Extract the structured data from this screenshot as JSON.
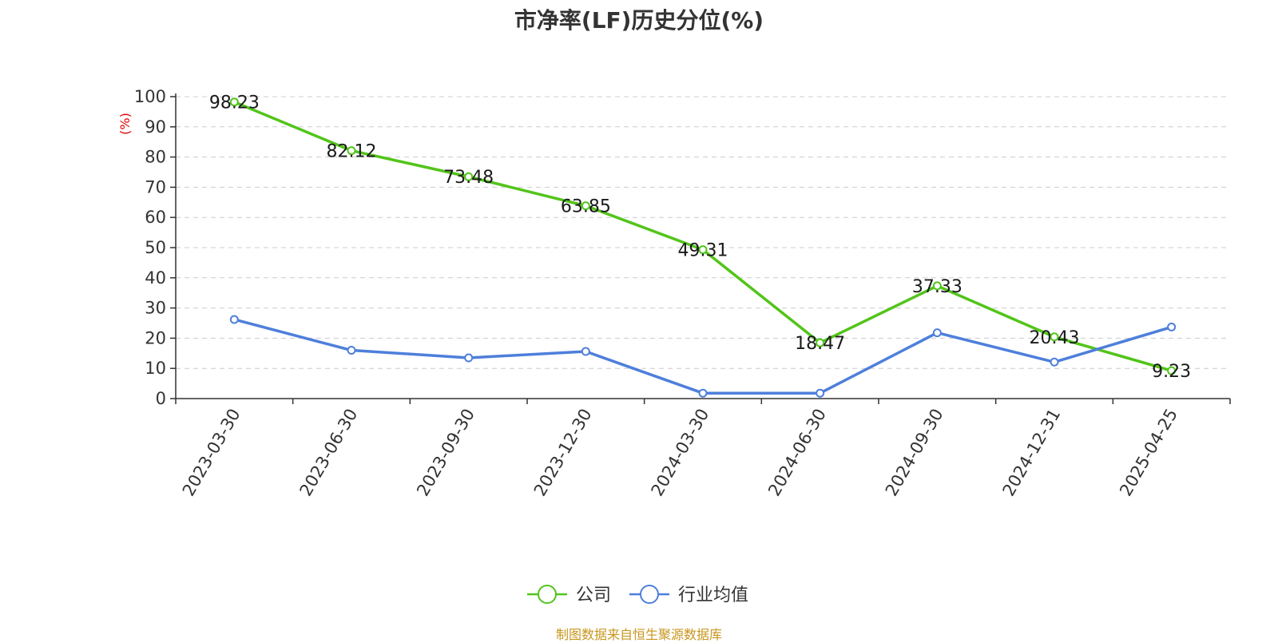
{
  "title": "市净率(LF)历史分位(%)",
  "source_note": "制图数据来自恒生聚源数据库",
  "colors": {
    "company": "#52c41a",
    "industry": "#4e7fdb",
    "axis": "#333333",
    "grid": "#cccccc",
    "unit": "#e00000"
  },
  "chart_data": {
    "type": "line",
    "categories": [
      "2023-03-30",
      "2023-06-30",
      "2023-09-30",
      "2023-12-30",
      "2024-03-30",
      "2024-06-30",
      "2024-09-30",
      "2024-12-31",
      "2025-04-25"
    ],
    "series": [
      {
        "name": "公司",
        "values": [
          98.23,
          82.12,
          73.48,
          63.85,
          49.31,
          18.47,
          37.33,
          20.43,
          9.23
        ],
        "labels": [
          "98.23",
          "82.12",
          "73.48",
          "63.85",
          "49.31",
          "18.47",
          "37.33",
          "20.43",
          "9.23"
        ]
      },
      {
        "name": "行业均值",
        "values": [
          26.2,
          16.0,
          13.5,
          15.6,
          1.8,
          1.8,
          21.8,
          12.1,
          23.7
        ]
      }
    ],
    "ylabel": "(%)",
    "ylim": [
      0,
      100
    ],
    "yticks": [
      "0",
      "10",
      "20",
      "30",
      "40",
      "50",
      "60",
      "70",
      "80",
      "90",
      "100"
    ],
    "grid": true,
    "legend_position": "bottom"
  }
}
